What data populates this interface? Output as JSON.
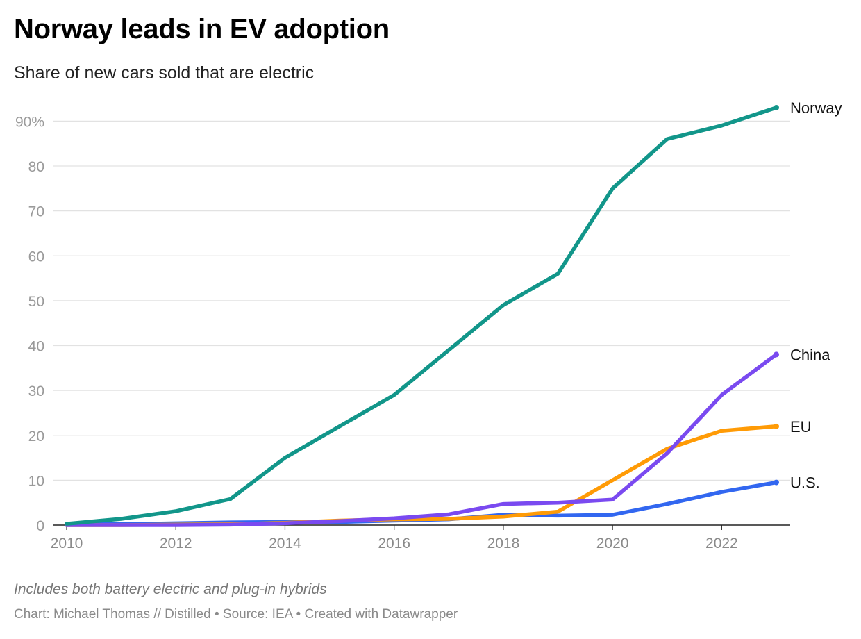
{
  "header": {
    "title": "Norway leads in EV adoption",
    "subtitle": "Share of new cars sold that are electric"
  },
  "footer": {
    "note": "Includes both battery electric and plug-in hybrids",
    "credit_author": "Chart: Michael Thomas // Distilled",
    "credit_source": "Source: IEA",
    "credit_tool": "Created with Datawrapper",
    "separator": "•"
  },
  "chart_data": {
    "type": "line",
    "title": "Norway leads in EV adoption",
    "subtitle": "Share of new cars sold that are electric",
    "xlabel": "",
    "ylabel": "",
    "x": [
      2010,
      2011,
      2012,
      2013,
      2014,
      2015,
      2016,
      2017,
      2018,
      2019,
      2020,
      2021,
      2022,
      2023
    ],
    "xlim": [
      2010,
      2023
    ],
    "ylim": [
      0,
      93
    ],
    "x_ticks": [
      2010,
      2012,
      2014,
      2016,
      2018,
      2020,
      2022
    ],
    "y_ticks": [
      0,
      10,
      20,
      30,
      40,
      50,
      60,
      70,
      80,
      90
    ],
    "y_tick_labels": [
      "0",
      "10",
      "20",
      "30",
      "40",
      "50",
      "60",
      "70",
      "80",
      "90%"
    ],
    "grid": "horizontal",
    "legend": "direct labels at line ends (right)",
    "series": [
      {
        "name": "U.S.",
        "color": "#3267f0",
        "values": [
          0.2,
          0.2,
          0.4,
          0.6,
          0.7,
          0.7,
          1.0,
          1.3,
          2.3,
          2.1,
          2.3,
          4.7,
          7.4,
          9.5
        ]
      },
      {
        "name": "EU",
        "color": "#ff9b06",
        "values": [
          0.0,
          0.0,
          0.1,
          0.2,
          0.5,
          1.0,
          1.3,
          1.4,
          1.9,
          3.0,
          10.0,
          17.0,
          21.0,
          22.0
        ]
      },
      {
        "name": "China",
        "color": "#7a4af0",
        "values": [
          0.0,
          0.0,
          0.0,
          0.1,
          0.4,
          0.9,
          1.5,
          2.4,
          4.7,
          5.0,
          5.7,
          16.0,
          29.0,
          38.0
        ]
      },
      {
        "name": "Norway",
        "color": "#12968a",
        "values": [
          0.3,
          1.4,
          3.1,
          5.8,
          15.0,
          22.0,
          29.0,
          39.0,
          49.0,
          56.0,
          75.0,
          86.0,
          89.0,
          93.0
        ]
      }
    ]
  }
}
